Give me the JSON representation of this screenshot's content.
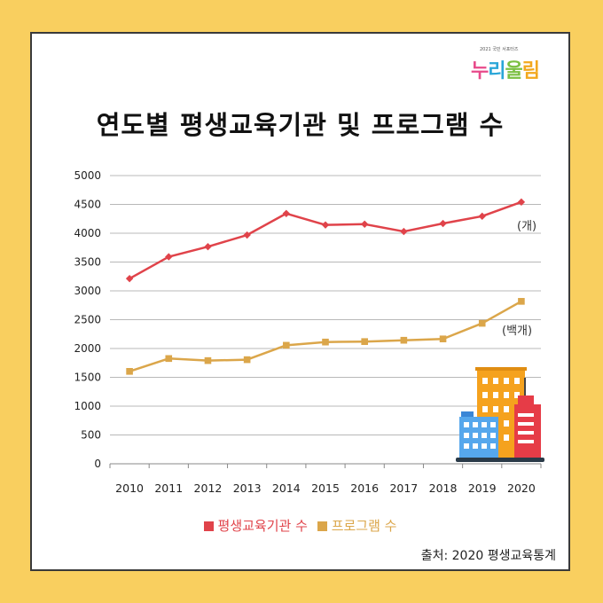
{
  "logo": {
    "small_text": "2021 국민 서포터즈",
    "main_parts": [
      "누",
      "리",
      "울",
      "림"
    ]
  },
  "title": "연도별 평생교육기관 및 프로그램 수",
  "units": {
    "institutions": "(개)",
    "programs": "(백개)"
  },
  "source": "출처: 2020 평생교육통계",
  "colors": {
    "institutions": "#e0434a",
    "programs": "#dba64a",
    "background": "#f9cf5f"
  },
  "icons": [
    "buildings-icon"
  ],
  "chart_data": {
    "type": "line",
    "title": "연도별 평생교육기관 및 프로그램 수",
    "categories": [
      "2010",
      "2011",
      "2012",
      "2013",
      "2014",
      "2015",
      "2016",
      "2017",
      "2018",
      "2019",
      "2020"
    ],
    "ylim": [
      0,
      5000
    ],
    "yticks": [
      0,
      500,
      1000,
      1500,
      2000,
      2500,
      3000,
      3500,
      4000,
      4500,
      5000
    ],
    "grid": true,
    "legend_position": "bottom",
    "series": [
      {
        "name": "평생교육기관 수",
        "marker": "diamond",
        "color": "#e0434a",
        "values": [
          3213,
          3591,
          3766,
          3969,
          4342,
          4144,
          4157,
          4030,
          4169,
          4295,
          4541
        ]
      },
      {
        "name": "프로그램 수",
        "marker": "square",
        "color": "#dba64a",
        "values": [
          1603,
          1826,
          1790,
          1806,
          2056,
          2112,
          2120,
          2143,
          2166,
          2437,
          2818
        ]
      }
    ]
  }
}
